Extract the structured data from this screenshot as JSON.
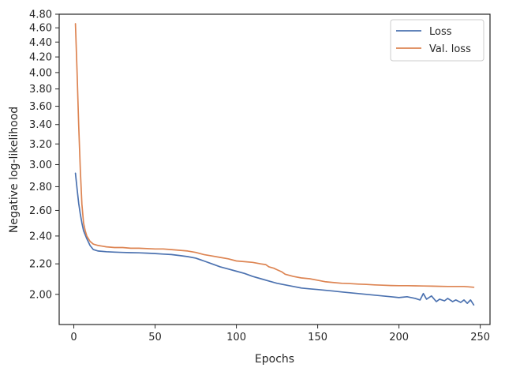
{
  "chart_data": {
    "type": "line",
    "title": "",
    "xlabel": "Epochs",
    "ylabel": "Negative log-likelihood",
    "xlim": [
      -9,
      256
    ],
    "ylim": [
      1.82,
      4.8
    ],
    "yscale": "log",
    "xticks": [
      0,
      50,
      100,
      150,
      200,
      250
    ],
    "xtick_labels": [
      "0",
      "50",
      "100",
      "150",
      "200",
      "250"
    ],
    "yticks": [
      2.0,
      2.2,
      2.4,
      2.6,
      2.8,
      3.0,
      3.2,
      3.4,
      3.6,
      3.8,
      4.0,
      4.2,
      4.4,
      4.6,
      4.8
    ],
    "ytick_labels": [
      "2.00",
      "2.20",
      "2.40",
      "2.60",
      "2.80",
      "3.00",
      "3.20",
      "3.40",
      "3.60",
      "3.80",
      "4.00",
      "4.20",
      "4.40",
      "4.60",
      "4.80"
    ],
    "grid": false,
    "legend": {
      "position": "top-right"
    },
    "series": [
      {
        "name": "Loss",
        "color": "#4c72b0",
        "x": [
          1,
          2,
          3,
          4,
          5,
          6,
          8,
          10,
          12,
          15,
          20,
          25,
          30,
          35,
          40,
          45,
          50,
          55,
          60,
          65,
          70,
          75,
          80,
          85,
          90,
          95,
          100,
          105,
          110,
          115,
          120,
          125,
          130,
          135,
          140,
          145,
          150,
          155,
          160,
          165,
          170,
          175,
          180,
          185,
          190,
          195,
          200,
          205,
          210,
          213,
          215,
          217,
          220,
          223,
          225,
          228,
          230,
          233,
          235,
          238,
          240,
          242,
          244,
          246
        ],
        "y": [
          2.92,
          2.78,
          2.66,
          2.57,
          2.5,
          2.44,
          2.38,
          2.33,
          2.3,
          2.29,
          2.285,
          2.282,
          2.28,
          2.278,
          2.277,
          2.275,
          2.272,
          2.268,
          2.265,
          2.258,
          2.25,
          2.24,
          2.22,
          2.2,
          2.18,
          2.165,
          2.15,
          2.135,
          2.115,
          2.1,
          2.085,
          2.07,
          2.06,
          2.05,
          2.04,
          2.035,
          2.03,
          2.025,
          2.02,
          2.015,
          2.01,
          2.005,
          2.0,
          1.995,
          1.99,
          1.985,
          1.98,
          1.985,
          1.975,
          1.965,
          2.005,
          1.97,
          1.99,
          1.955,
          1.97,
          1.96,
          1.975,
          1.955,
          1.965,
          1.95,
          1.965,
          1.945,
          1.965,
          1.935
        ]
      },
      {
        "name": "Val. loss",
        "color": "#dd8452",
        "x": [
          1,
          2,
          3,
          4,
          5,
          6,
          7,
          8,
          10,
          12,
          15,
          20,
          25,
          30,
          35,
          40,
          50,
          55,
          60,
          65,
          70,
          75,
          80,
          85,
          90,
          95,
          100,
          105,
          110,
          115,
          118,
          120,
          123,
          125,
          128,
          130,
          135,
          140,
          145,
          150,
          155,
          160,
          165,
          170,
          175,
          180,
          185,
          190,
          195,
          200,
          205,
          210,
          215,
          220,
          225,
          230,
          235,
          240,
          246
        ],
        "y": [
          4.66,
          4.0,
          3.4,
          2.95,
          2.65,
          2.5,
          2.44,
          2.4,
          2.36,
          2.34,
          2.33,
          2.32,
          2.315,
          2.315,
          2.31,
          2.31,
          2.305,
          2.305,
          2.3,
          2.295,
          2.29,
          2.28,
          2.265,
          2.255,
          2.245,
          2.235,
          2.22,
          2.215,
          2.21,
          2.2,
          2.195,
          2.18,
          2.17,
          2.16,
          2.145,
          2.13,
          2.115,
          2.105,
          2.1,
          2.09,
          2.08,
          2.075,
          2.07,
          2.068,
          2.065,
          2.063,
          2.06,
          2.058,
          2.056,
          2.055,
          2.055,
          2.054,
          2.053,
          2.052,
          2.051,
          2.05,
          2.05,
          2.05,
          2.045
        ]
      }
    ]
  }
}
